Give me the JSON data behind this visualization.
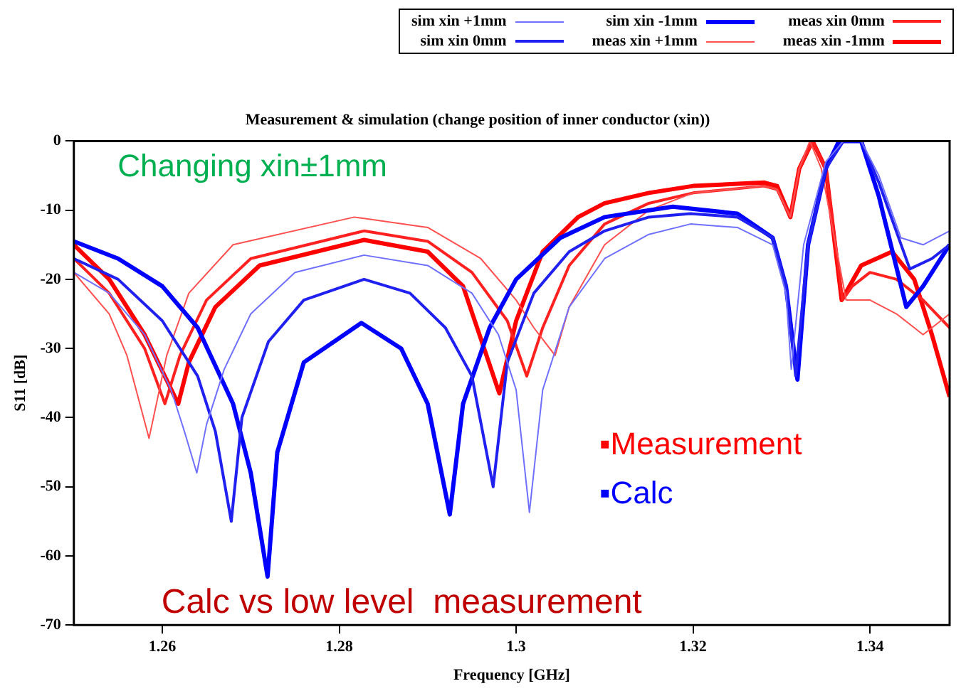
{
  "chart_data": {
    "type": "line",
    "title": "Measurement & simulation (change position of inner conductor (xin))",
    "xlabel": "Frequency [GHz]",
    "ylabel": "S11 [dB]",
    "xlim": [
      1.25,
      1.349
    ],
    "xticks": [
      1.26,
      1.28,
      1.3,
      1.32,
      1.34
    ],
    "ylim": [
      -70,
      0
    ],
    "yticks": [
      -70,
      -60,
      -50,
      -40,
      -30,
      -20,
      -10,
      0
    ],
    "grid": false,
    "legend": "top",
    "marker": "none",
    "line_style": "solid",
    "annotations": [
      "Changing xin±1mm",
      "▪Measurement",
      "▪Calc",
      "Calc vs low level  measurement"
    ],
    "series": [
      {
        "name": "sim xin +1mm",
        "color": "#7070ff",
        "x": [
          1.25,
          1.254,
          1.258,
          1.261,
          1.2625,
          1.2639,
          1.265,
          1.267,
          1.27,
          1.275,
          1.2828,
          1.29,
          1.295,
          1.298,
          1.3,
          1.3015,
          1.303,
          1.306,
          1.31,
          1.315,
          1.3197,
          1.325,
          1.329,
          1.3305,
          1.3311,
          1.3325,
          1.335,
          1.337,
          1.339,
          1.341,
          1.3435,
          1.346,
          1.349
        ],
        "values": [
          -19,
          -22,
          -28,
          -36,
          -42,
          -48,
          -41,
          -33,
          -25,
          -19,
          -16.5,
          -18,
          -22,
          -28,
          -36,
          -53.7,
          -36,
          -24,
          -17,
          -13.5,
          -12,
          -12.5,
          -15,
          -22,
          -33,
          -15,
          -3,
          0,
          0,
          -5,
          -14,
          -15,
          -13
        ]
      },
      {
        "name": "sim xin 0mm",
        "color": "#2020f0",
        "x": [
          1.25,
          1.255,
          1.26,
          1.264,
          1.266,
          1.2678,
          1.269,
          1.272,
          1.276,
          1.2828,
          1.288,
          1.292,
          1.295,
          1.2974,
          1.299,
          1.302,
          1.306,
          1.31,
          1.315,
          1.3197,
          1.325,
          1.329,
          1.3305,
          1.3316,
          1.333,
          1.335,
          1.337,
          1.339,
          1.341,
          1.3445,
          1.347,
          1.349
        ],
        "values": [
          -17,
          -20,
          -26,
          -34,
          -42,
          -55,
          -40,
          -29,
          -23,
          -20,
          -22,
          -27,
          -34,
          -50,
          -32,
          -22,
          -16,
          -13,
          -11,
          -10.5,
          -11,
          -14,
          -21,
          -34,
          -15,
          -4,
          0,
          0,
          -6,
          -18.5,
          -17,
          -15
        ]
      },
      {
        "name": "sim xin -1mm",
        "color": "#0000ff",
        "x": [
          1.25,
          1.255,
          1.26,
          1.264,
          1.268,
          1.27,
          1.2719,
          1.273,
          1.276,
          1.2825,
          1.287,
          1.29,
          1.2925,
          1.294,
          1.297,
          1.3,
          1.305,
          1.31,
          1.3177,
          1.325,
          1.329,
          1.3305,
          1.3318,
          1.333,
          1.335,
          1.3365,
          1.339,
          1.341,
          1.3441,
          1.346,
          1.349
        ],
        "values": [
          -14.5,
          -17,
          -21,
          -27,
          -38,
          -48,
          -63,
          -45,
          -32,
          -26.3,
          -30,
          -38,
          -54,
          -38,
          -27,
          -20,
          -14,
          -11,
          -9.5,
          -10.5,
          -14,
          -21,
          -34.5,
          -15,
          -4,
          0,
          0,
          -8,
          -24,
          -21,
          -15
        ]
      },
      {
        "name": "meas xin +1mm",
        "color": "#ff5050",
        "x": [
          1.25,
          1.254,
          1.256,
          1.2585,
          1.2605,
          1.263,
          1.268,
          1.2817,
          1.29,
          1.296,
          1.3,
          1.302,
          1.3044,
          1.306,
          1.31,
          1.315,
          1.32,
          1.328,
          1.3295,
          1.331,
          1.332,
          1.3332,
          1.3345,
          1.3373,
          1.34,
          1.343,
          1.346,
          1.349
        ],
        "values": [
          -19,
          -25,
          -31,
          -43,
          -31,
          -22,
          -15,
          -11,
          -12.5,
          -17,
          -23,
          -27,
          -31,
          -24,
          -15,
          -10,
          -7.5,
          -6.5,
          -7,
          -11,
          -4,
          0,
          -4,
          -23,
          -23,
          -25,
          -28,
          -25
        ]
      },
      {
        "name": "meas xin 0mm",
        "color": "#ff2020",
        "x": [
          1.25,
          1.254,
          1.258,
          1.2603,
          1.262,
          1.265,
          1.27,
          1.2828,
          1.29,
          1.295,
          1.299,
          1.3012,
          1.303,
          1.306,
          1.31,
          1.315,
          1.32,
          1.328,
          1.3295,
          1.331,
          1.332,
          1.3335,
          1.335,
          1.3369,
          1.338,
          1.34,
          1.343,
          1.346,
          1.349
        ],
        "values": [
          -17,
          -22,
          -30,
          -38,
          -31,
          -23,
          -17,
          -13,
          -14.5,
          -19,
          -26,
          -34,
          -27,
          -18,
          -12,
          -9,
          -7.5,
          -6.5,
          -7,
          -11,
          -4,
          0,
          -4,
          -23,
          -21,
          -19,
          -20,
          -23,
          -27
        ]
      },
      {
        "name": "meas xin -1mm",
        "color": "#ff0000",
        "x": [
          1.25,
          1.254,
          1.258,
          1.2618,
          1.263,
          1.266,
          1.271,
          1.2828,
          1.29,
          1.294,
          1.2981,
          1.3,
          1.303,
          1.307,
          1.31,
          1.315,
          1.32,
          1.328,
          1.3295,
          1.331,
          1.332,
          1.3335,
          1.335,
          1.3368,
          1.339,
          1.3425,
          1.345,
          1.347,
          1.349
        ],
        "values": [
          -15,
          -20,
          -28,
          -38,
          -32,
          -24,
          -18,
          -14.3,
          -16,
          -21,
          -36.5,
          -26,
          -16,
          -11,
          -9,
          -7.5,
          -6.5,
          -6,
          -6.5,
          -11,
          -4,
          0,
          -4,
          -23,
          -18,
          -16,
          -20,
          -28,
          -37
        ]
      }
    ]
  }
}
